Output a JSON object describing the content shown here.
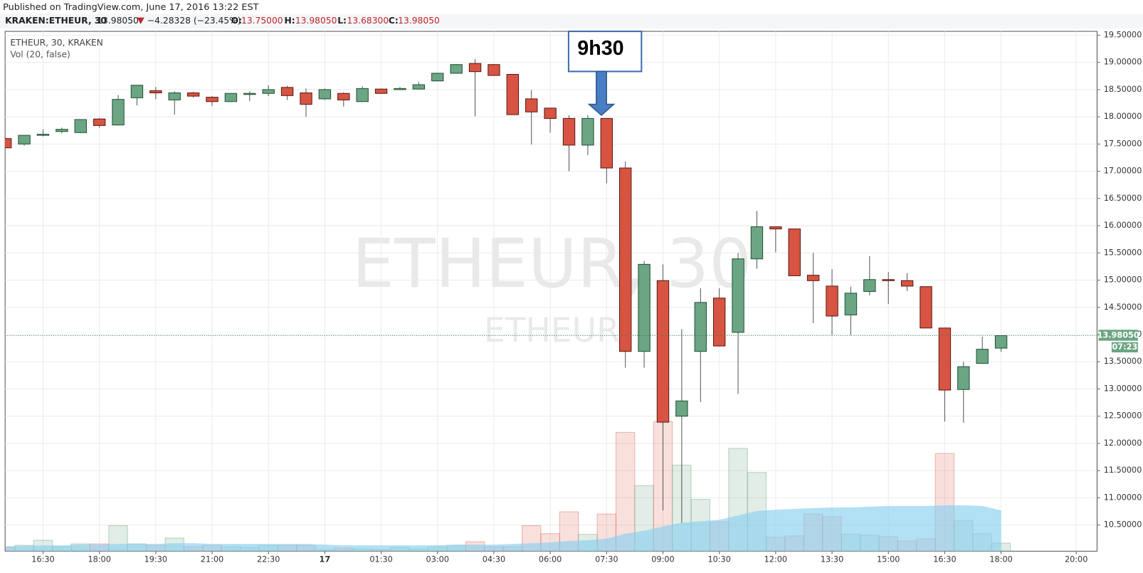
{
  "chart_data": {
    "type": "candlestick",
    "published": "Published on TradingView.com, June 17, 2016 13:22 EST",
    "symbol": "KRAKEN:ETHEUR, 30",
    "last": "13.98050",
    "change": "−4.28328 (−23.45%)",
    "ohlc_labels": [
      "O:",
      "H:",
      "L:",
      "C:"
    ],
    "ohlc_values": [
      "13.75000",
      "13.98050",
      "13.68300",
      "13.98050"
    ],
    "legend": [
      "ETHEUR, 30, KRAKEN",
      "Vol (20, false)"
    ],
    "watermark": "ETHEUR, 30",
    "watermark_sub": "ETHEUR",
    "annotation": "9h30",
    "countdown": "07:23",
    "categories": [
      null,
      null,
      "16:30",
      null,
      null,
      "18:00",
      null,
      null,
      "19:30",
      null,
      null,
      "21:00",
      null,
      null,
      "22:30",
      null,
      null,
      "17",
      null,
      null,
      "01:30",
      null,
      null,
      "03:00",
      null,
      null,
      "04:30",
      null,
      null,
      "06:00",
      null,
      null,
      "07:30",
      null,
      null,
      "09:00",
      null,
      null,
      "10:30",
      null,
      null,
      "12:00",
      null,
      null,
      "13:30",
      null,
      null,
      "15:00",
      null,
      null,
      "16:30",
      null,
      null,
      "18:00",
      null,
      null,
      null,
      "20:00"
    ],
    "open": [
      17.6,
      17.5,
      17.66,
      17.73,
      17.71,
      17.96,
      17.85,
      18.35,
      18.48,
      18.31,
      18.44,
      18.36,
      18.28,
      18.42,
      18.43,
      18.54,
      18.44,
      18.33,
      18.43,
      18.28,
      18.51,
      18.51,
      18.51,
      18.66,
      18.8,
      18.98,
      18.96,
      18.78,
      18.33,
      18.16,
      17.97,
      17.48,
      17.97,
      17.06,
      13.69,
      14.99,
      12.5,
      13.69,
      14.67,
      14.04,
      15.39,
      15.98,
      15.94,
      15.09,
      14.89,
      14.36,
      14.79,
      15.01,
      14.99,
      14.88,
      14.12,
      12.99,
      13.47,
      13.75,
      null,
      null,
      null,
      null
    ],
    "high": [
      17.62,
      17.66,
      17.77,
      17.8,
      17.95,
      17.98,
      18.4,
      18.58,
      18.55,
      18.47,
      18.46,
      18.38,
      18.43,
      18.47,
      18.58,
      18.57,
      18.52,
      18.52,
      18.45,
      18.56,
      18.52,
      18.55,
      18.64,
      18.81,
      18.97,
      19.06,
      18.97,
      18.78,
      18.49,
      18.16,
      18.03,
      18.03,
      17.97,
      17.18,
      15.35,
      15.29,
      14.1,
      14.85,
      14.85,
      15.5,
      16.27,
      15.98,
      15.94,
      15.5,
      15.2,
      14.88,
      15.44,
      15.15,
      15.13,
      14.88,
      14.12,
      13.5,
      13.96,
      13.9805,
      null,
      null,
      null,
      null
    ],
    "low": [
      17.43,
      17.47,
      17.64,
      17.7,
      17.7,
      17.8,
      17.84,
      18.21,
      18.32,
      18.04,
      18.35,
      18.2,
      18.27,
      18.29,
      18.38,
      18.31,
      18.0,
      18.31,
      18.19,
      18.27,
      18.42,
      18.49,
      18.5,
      18.65,
      18.8,
      18.01,
      18.76,
      18.04,
      17.49,
      17.71,
      17.0,
      17.3,
      16.78,
      13.39,
      13.39,
      10.77,
      10.54,
      12.76,
      13.78,
      12.91,
      15.21,
      15.51,
      15.08,
      14.21,
      13.99,
      13.99,
      14.72,
      14.56,
      14.8,
      14.12,
      12.4,
      12.38,
      13.47,
      13.683,
      null,
      null,
      null,
      null
    ],
    "close": [
      17.43,
      17.66,
      17.68,
      17.77,
      17.95,
      17.84,
      18.32,
      18.58,
      18.44,
      18.44,
      18.38,
      18.28,
      18.43,
      18.43,
      18.5,
      18.39,
      18.23,
      18.5,
      18.31,
      18.52,
      18.43,
      18.52,
      18.59,
      18.8,
      18.96,
      18.83,
      18.76,
      18.04,
      18.09,
      17.97,
      17.48,
      17.97,
      17.06,
      13.69,
      15.29,
      12.39,
      12.78,
      14.59,
      13.79,
      15.39,
      15.98,
      15.94,
      15.08,
      14.99,
      14.34,
      14.76,
      15.01,
      14.99,
      14.89,
      14.12,
      12.98,
      13.41,
      13.73,
      13.9805,
      null,
      null,
      null,
      null
    ],
    "volume": [
      5,
      8,
      15,
      6,
      10,
      10,
      35,
      10,
      8,
      18,
      6,
      8,
      6,
      5,
      8,
      8,
      8,
      2,
      4,
      3,
      2,
      5,
      3,
      6,
      8,
      13,
      6,
      6,
      35,
      24,
      54,
      23,
      51,
      163,
      90,
      178,
      118,
      71,
      40,
      141,
      108,
      19,
      21,
      51,
      47,
      23,
      22,
      20,
      14,
      17,
      134,
      42,
      24,
      11,
      null,
      null,
      null,
      null
    ],
    "volume_ma": [
      7,
      7,
      8,
      8,
      9,
      9,
      10,
      10,
      10,
      11,
      11,
      10,
      10,
      10,
      10,
      10,
      10,
      9,
      8,
      8,
      8,
      8,
      8,
      8,
      9,
      9,
      9,
      10,
      11,
      12,
      14,
      15,
      17,
      24,
      28,
      34,
      39,
      41,
      43,
      49,
      55,
      57,
      58,
      59,
      60,
      60,
      61,
      62,
      62,
      62,
      63,
      63,
      62,
      56,
      null,
      null,
      null,
      null
    ],
    "ylim": [
      10.02,
      19.57
    ],
    "yticks": [
      {
        "value": 10.5,
        "label": "10.50000"
      },
      {
        "value": 11,
        "label": "11.00000"
      },
      {
        "value": 11.5,
        "label": "11.50000"
      },
      {
        "value": 12,
        "label": "12.00000"
      },
      {
        "value": 12.5,
        "label": "12.50000"
      },
      {
        "value": 13,
        "label": "13.00000"
      },
      {
        "value": 13.5,
        "label": "13.50000"
      },
      {
        "value": 14,
        "label": "14.00000"
      },
      {
        "value": 14.5,
        "label": "14.50000"
      },
      {
        "value": 15,
        "label": "15.00000"
      },
      {
        "value": 15.5,
        "label": "15.50000"
      },
      {
        "value": 16,
        "label": "16.00000"
      },
      {
        "value": 16.5,
        "label": "16.50000"
      },
      {
        "value": 17,
        "label": "17.00000"
      },
      {
        "value": 17.5,
        "label": "17.50000"
      },
      {
        "value": 18,
        "label": "18.00000"
      },
      {
        "value": 18.5,
        "label": "18.50000"
      },
      {
        "value": 19,
        "label": "19.00000"
      },
      {
        "value": 19.5,
        "label": "19.50000"
      }
    ],
    "grid": true,
    "up_color": "#6ba583",
    "down_color": "#d75442",
    "ma_color": "#89cff0"
  }
}
